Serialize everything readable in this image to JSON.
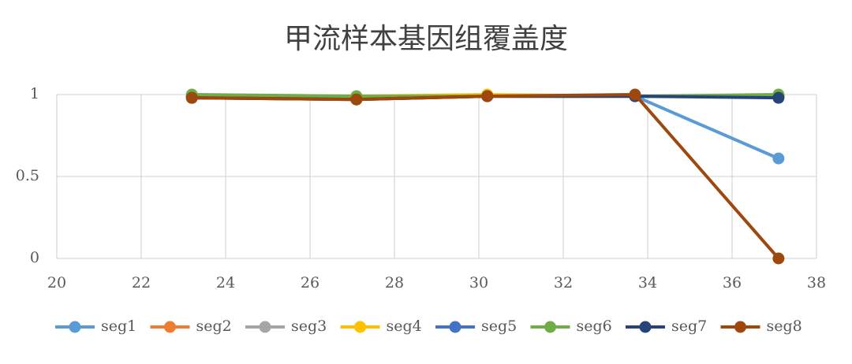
{
  "chart_data": {
    "type": "line",
    "title": "甲流样本基因组覆盖度",
    "x": [
      23.2,
      27.1,
      30.2,
      33.7,
      37.1
    ],
    "series": [
      {
        "name": "seg1",
        "color": "#5b9bd5",
        "values": [
          0.98,
          0.97,
          0.99,
          0.99,
          0.61
        ]
      },
      {
        "name": "seg2",
        "color": "#ed7d31",
        "values": [
          0.99,
          0.98,
          0.99,
          0.99,
          0.99
        ]
      },
      {
        "name": "seg3",
        "color": "#a5a5a5",
        "values": [
          0.99,
          0.98,
          0.99,
          0.99,
          0.99
        ]
      },
      {
        "name": "seg4",
        "color": "#ffc000",
        "values": [
          0.99,
          0.99,
          1,
          0.99,
          0.99
        ]
      },
      {
        "name": "seg5",
        "color": "#4472c4",
        "values": [
          0.99,
          0.98,
          0.99,
          0.99,
          0.99
        ]
      },
      {
        "name": "seg6",
        "color": "#70ad47",
        "values": [
          1,
          0.99,
          0.99,
          0.99,
          1
        ]
      },
      {
        "name": "seg7",
        "color": "#264478",
        "values": [
          0.98,
          0.97,
          0.99,
          0.99,
          0.98
        ]
      },
      {
        "name": "seg8",
        "color": "#9e480e",
        "values": [
          0.98,
          0.97,
          0.99,
          1,
          0
        ]
      }
    ],
    "xlim": [
      20,
      38
    ],
    "xticks": [
      20,
      22,
      24,
      26,
      28,
      30,
      32,
      34,
      36,
      38
    ],
    "ylim": [
      0,
      1
    ],
    "yticks": [
      0,
      0.5,
      1
    ],
    "grid": true
  }
}
